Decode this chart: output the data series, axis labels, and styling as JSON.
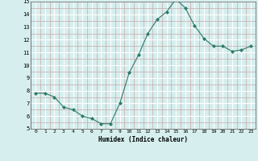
{
  "x": [
    0,
    1,
    2,
    3,
    4,
    5,
    6,
    7,
    8,
    9,
    10,
    11,
    12,
    13,
    14,
    15,
    16,
    17,
    18,
    19,
    20,
    21,
    22,
    23
  ],
  "y": [
    7.8,
    7.8,
    7.5,
    6.7,
    6.5,
    6.0,
    5.8,
    5.4,
    5.4,
    7.0,
    9.4,
    10.8,
    12.5,
    13.6,
    14.2,
    15.2,
    14.5,
    13.1,
    12.1,
    11.5,
    11.5,
    11.1,
    11.2,
    11.5
  ],
  "xlabel": "Humidex (Indice chaleur)",
  "ylim": [
    5,
    15
  ],
  "xlim_min": -0.5,
  "xlim_max": 23.5,
  "yticks": [
    5,
    6,
    7,
    8,
    9,
    10,
    11,
    12,
    13,
    14,
    15
  ],
  "xticks": [
    0,
    1,
    2,
    3,
    4,
    5,
    6,
    7,
    8,
    9,
    10,
    11,
    12,
    13,
    14,
    15,
    16,
    17,
    18,
    19,
    20,
    21,
    22,
    23
  ],
  "line_color": "#2d7a6a",
  "marker_color": "#2d7a6a",
  "bg_color": "#d6eeee",
  "grid_minor_color": "#c8a8a8",
  "grid_major_color": "#ffffff"
}
